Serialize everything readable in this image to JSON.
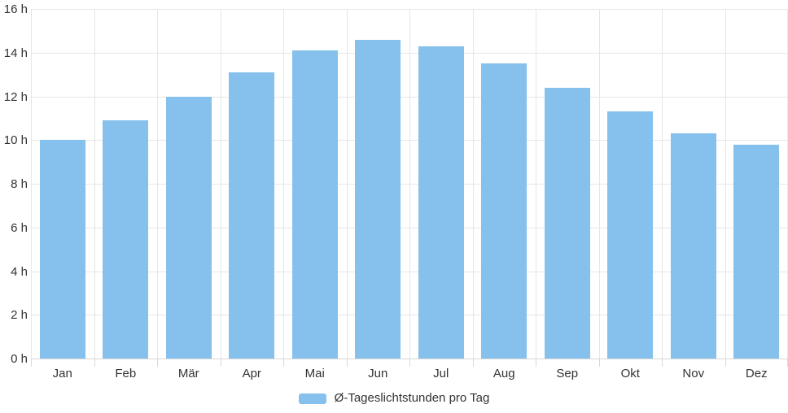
{
  "chart_data": {
    "type": "bar",
    "title": "",
    "xlabel": "",
    "ylabel": "",
    "categories": [
      "Jan",
      "Feb",
      "Mär",
      "Apr",
      "Mai",
      "Jun",
      "Jul",
      "Aug",
      "Sep",
      "Okt",
      "Nov",
      "Dez"
    ],
    "category_slugs": [
      "jan",
      "feb",
      "maer",
      "apr",
      "mai",
      "jun",
      "jul",
      "aug",
      "sep",
      "okt",
      "nov",
      "dez"
    ],
    "series": [
      {
        "name": "Ø-Tageslichtstunden pro Tag",
        "values": [
          10.0,
          10.9,
          12.0,
          13.1,
          14.1,
          14.6,
          14.3,
          13.5,
          12.4,
          11.3,
          10.3,
          9.8
        ]
      }
    ],
    "ylim": [
      0,
      16
    ],
    "y_tick_step": 2,
    "y_tick_values": [
      0,
      2,
      4,
      6,
      8,
      10,
      12,
      14,
      16
    ],
    "y_tick_labels": [
      "0 h",
      "2 h",
      "4 h",
      "6 h",
      "8 h",
      "10 h",
      "12 h",
      "14 h",
      "16 h"
    ],
    "grid": true,
    "legend_position": "bottom"
  },
  "legend": {
    "label": "Ø-Tageslichtstunden pro Tag"
  },
  "colors": {
    "bar": "#85c1ec",
    "gridline": "#e6e6e6",
    "axis_line": "#d8d8d8",
    "tick": "#d8d8d8",
    "label_text": "#333333",
    "background": "#ffffff"
  }
}
